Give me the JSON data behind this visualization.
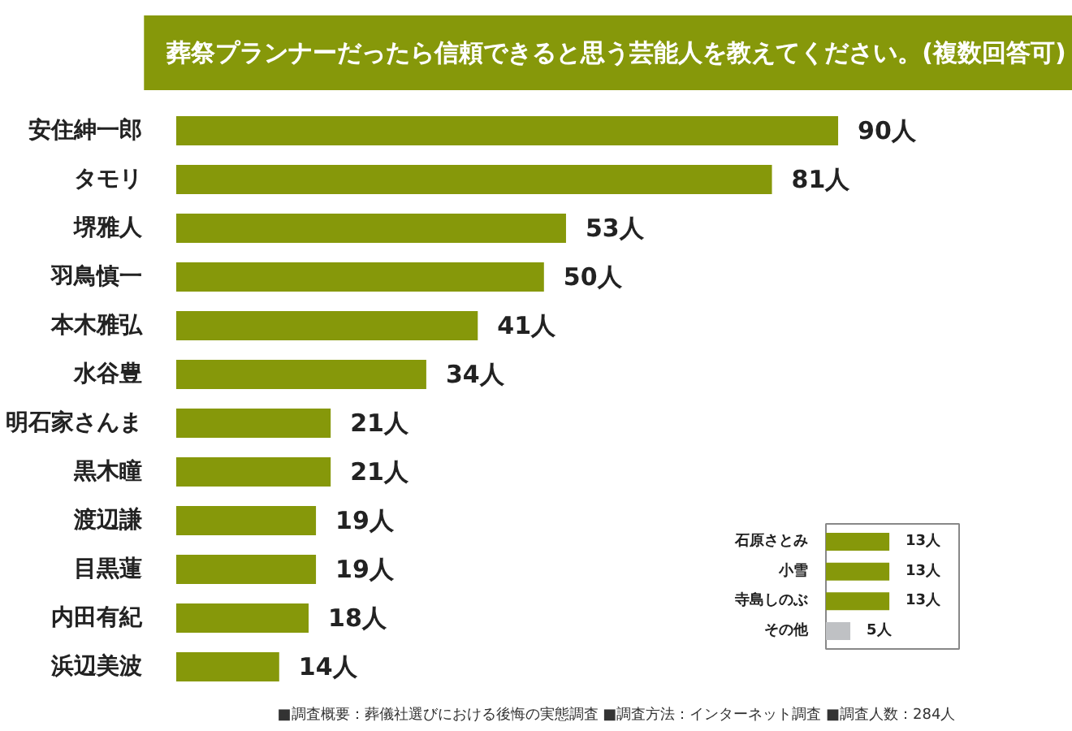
{
  "chart_data": [
    {
      "type": "bar",
      "orientation": "horizontal",
      "title": "葬祭プランナーだったら信頼できると思う芸能人を教えてください。(複数回答可)",
      "categories": [
        "安住紳一郎",
        "タモリ",
        "堺雅人",
        "羽鳥慎一",
        "本木雅弘",
        "水谷豊",
        "明石家さんま",
        "黒木瞳",
        "渡辺謙",
        "目黒蓮",
        "内田有紀",
        "浜辺美波"
      ],
      "values": [
        90,
        81,
        53,
        50,
        41,
        34,
        21,
        21,
        19,
        19,
        18,
        14
      ],
      "value_labels": [
        "90人",
        "81人",
        "53人",
        "50人",
        "41人",
        "34人",
        "21人",
        "21人",
        "19人",
        "19人",
        "18人",
        "14人"
      ],
      "color": "#86980a",
      "annotations": [
        "■調査概要：葬儀社選びにおける後悔の実態調査 ■調査方法：インターネット調査 ■調査人数：284人"
      ]
    },
    {
      "type": "bar",
      "orientation": "horizontal",
      "categories": [
        "石原さとみ",
        "小雪",
        "寺島しのぶ",
        "その他"
      ],
      "values": [
        13,
        13,
        13,
        5
      ],
      "value_labels": [
        "13人",
        "13人",
        "13人",
        "5人"
      ],
      "colors": [
        "#86980a",
        "#86980a",
        "#86980a",
        "#bfc1c4"
      ]
    }
  ]
}
